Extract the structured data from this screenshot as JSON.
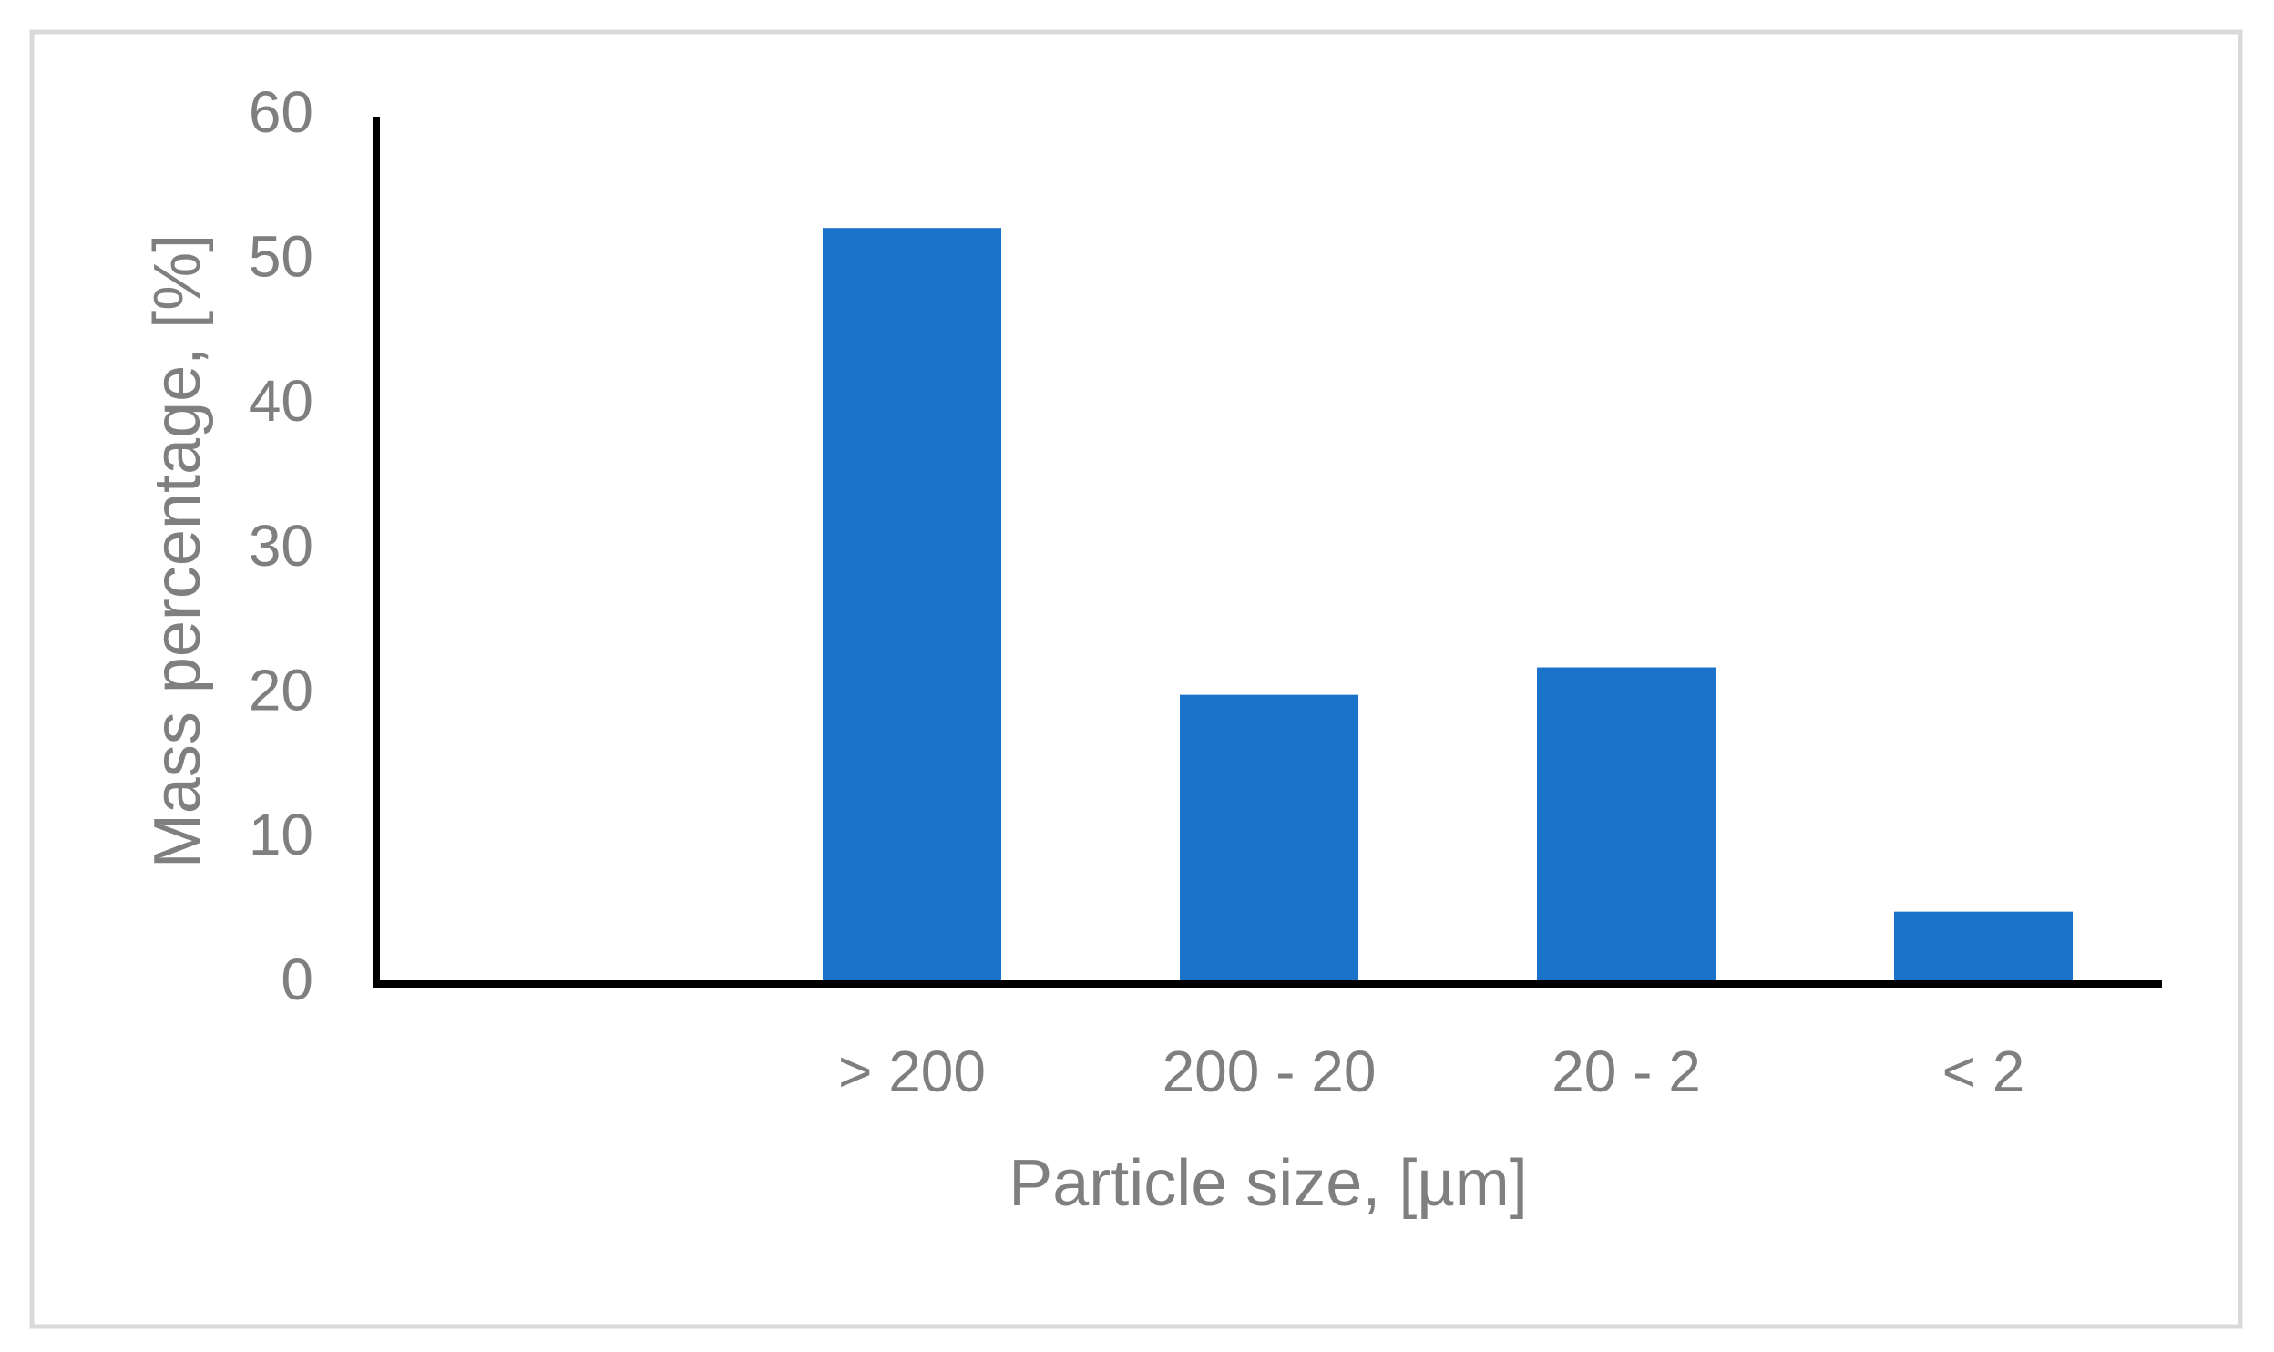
{
  "chart_data": {
    "type": "bar",
    "x_label": "Particle size, [µm]",
    "y_label": "Mass percentage, [%]",
    "categories": [
      null,
      "> 200",
      "200 - 20",
      "20 - 2",
      "< 2"
    ],
    "values": [
      null,
      52.3,
      20,
      21.9,
      5
    ],
    "color": "#1a73c8",
    "ylim": [
      0,
      60
    ],
    "yticks": [
      0,
      10,
      20,
      30,
      40,
      50,
      60
    ],
    "grid": false
  }
}
